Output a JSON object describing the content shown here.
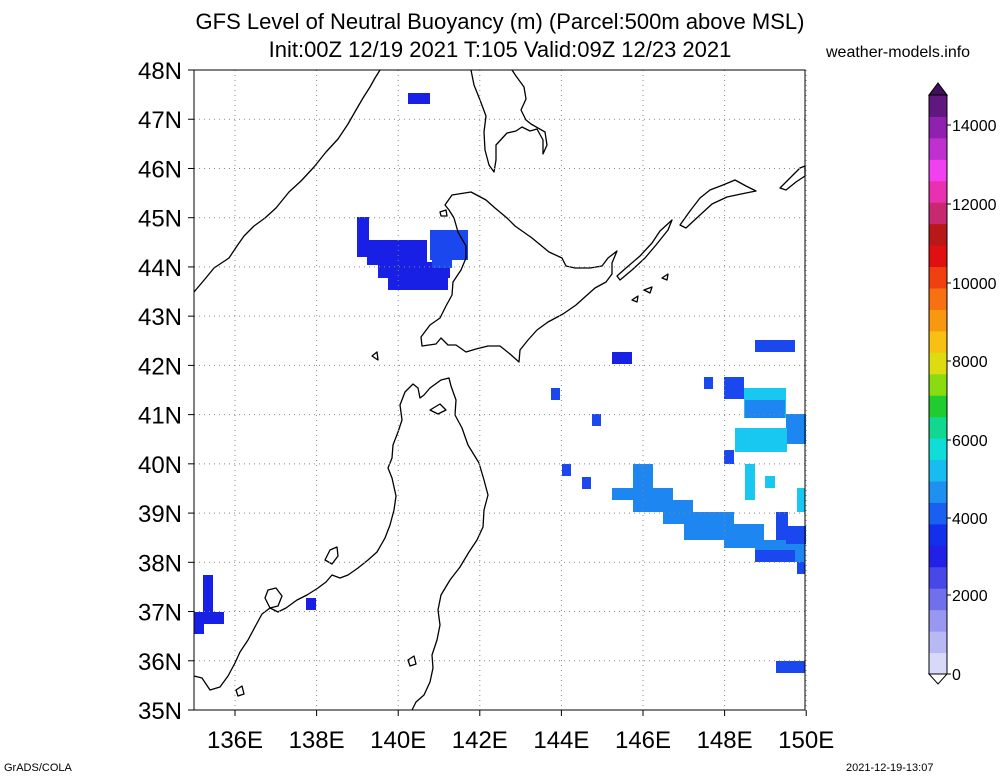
{
  "title_line1": "GFS Level of Neutral Buoyancy (m) (Parcel:500m above MSL)",
  "title_line2": "Init:00Z 12/19 2021 T:105 Valid:09Z 12/23 2021",
  "site": "weather-models.info",
  "footer_left": "GrADS/COLA",
  "footer_right": "2021-12-19-13:07",
  "lat_labels": [
    "48N",
    "47N",
    "46N",
    "45N",
    "44N",
    "43N",
    "42N",
    "41N",
    "40N",
    "39N",
    "38N",
    "37N",
    "36N",
    "35N"
  ],
  "lon_labels": [
    "136E",
    "138E",
    "140E",
    "142E",
    "144E",
    "146E",
    "148E",
    "150E"
  ],
  "colorbar": {
    "labels": [
      "14000",
      "12000",
      "10000",
      "8000",
      "6000",
      "4000",
      "2000",
      "0"
    ],
    "colors": [
      "#d8d8f8",
      "#b8b8f4",
      "#9898f0",
      "#7070ec",
      "#4848e8",
      "#2020e6",
      "#1230ec",
      "#1a60f0",
      "#1e90f0",
      "#18bcf0",
      "#10dcd8",
      "#10d890",
      "#20cc30",
      "#88dc10",
      "#dcdc10",
      "#f8c010",
      "#f89810",
      "#f87010",
      "#f04010",
      "#e01010",
      "#b81818",
      "#c82870",
      "#e830b0",
      "#f040f0",
      "#c030d0",
      "#9020b0",
      "#601880"
    ]
  },
  "field_colors": {
    "blue_dark": "#1820e6",
    "blue_mid": "#1a48ee",
    "blue_light": "#1e86f0",
    "cyan": "#18c8f0"
  }
}
